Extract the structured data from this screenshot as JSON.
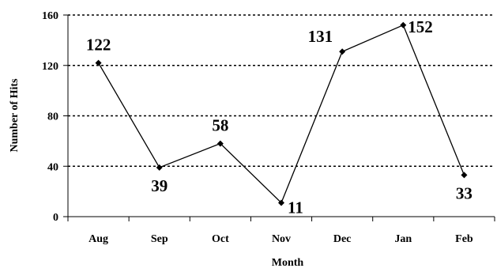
{
  "chart_data": {
    "type": "line",
    "title": "",
    "xlabel": "Month",
    "ylabel": "Number of Hits",
    "categories": [
      "Aug",
      "Sep",
      "Oct",
      "Nov",
      "Dec",
      "Jan",
      "Feb"
    ],
    "series": [
      {
        "values": [
          122,
          39,
          58,
          11,
          131,
          152,
          33
        ]
      }
    ],
    "data_labels": [
      "122",
      "39",
      "58",
      "11",
      "131",
      "152",
      "33"
    ],
    "ylim": [
      0,
      160
    ],
    "yticks": [
      0,
      40,
      80,
      120,
      160
    ],
    "grid": "horizontal dotted",
    "legend": "none",
    "colors": {
      "line": "#000000",
      "marker": "#000000",
      "grid": "#000000"
    }
  }
}
